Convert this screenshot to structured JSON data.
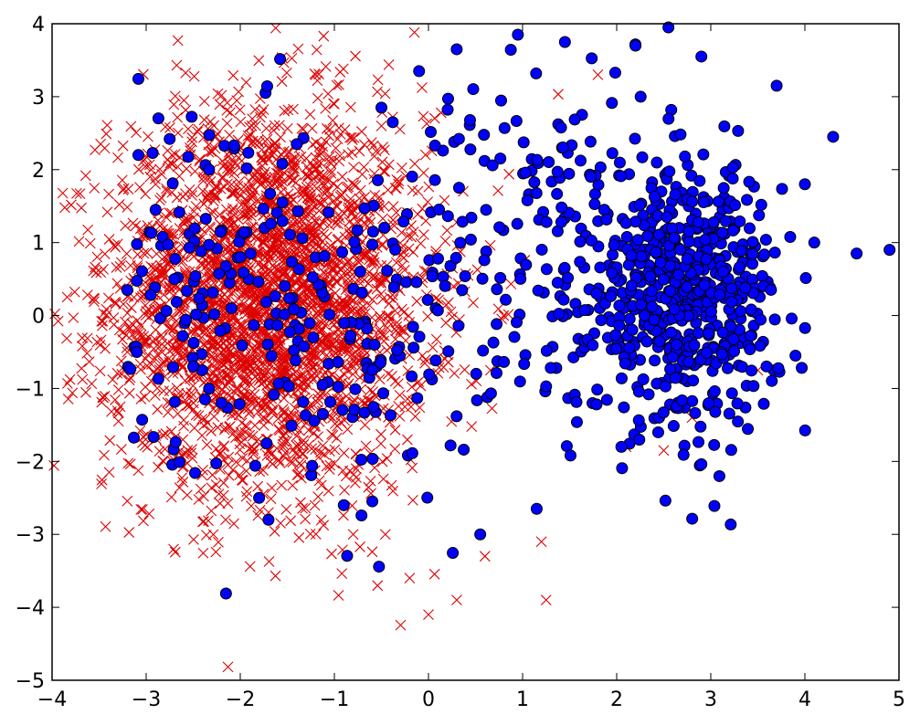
{
  "chart_data": {
    "type": "scatter",
    "title": "",
    "xlabel": "",
    "ylabel": "",
    "xlim": [
      -4,
      5
    ],
    "ylim": [
      -5,
      4
    ],
    "xticks": [
      -4,
      -3,
      -2,
      -1,
      0,
      1,
      2,
      3,
      4,
      5
    ],
    "yticks": [
      -5,
      -4,
      -3,
      -2,
      -1,
      0,
      1,
      2,
      3,
      4
    ],
    "xtick_labels": [
      "−4",
      "−3",
      "−2",
      "−1",
      "0",
      "1",
      "2",
      "3",
      "4",
      "5"
    ],
    "ytick_labels": [
      "−5",
      "−4",
      "−3",
      "−2",
      "−1",
      "0",
      "1",
      "2",
      "3",
      "4"
    ],
    "grid": false,
    "legend": "none",
    "series": [
      {
        "marker": "x",
        "color": "#dd0000",
        "count_estimate": 3000,
        "cluster": {
          "center": [
            -1.7,
            0.2
          ],
          "spread": [
            0.85,
            1.3
          ]
        },
        "sample_points": [
          [
            -3.2,
            -0.5
          ],
          [
            -2.9,
            1.8
          ],
          [
            -2.6,
            -1.9
          ],
          [
            -2.3,
            2.0
          ],
          [
            -2.0,
            2.3
          ],
          [
            -1.7,
            -2.7
          ],
          [
            -1.2,
            3.3
          ],
          [
            -1.0,
            2.9
          ],
          [
            -0.8,
            -3.0
          ],
          [
            -0.5,
            2.6
          ],
          [
            -0.2,
            -3.6
          ],
          [
            0.0,
            -4.1
          ],
          [
            0.3,
            -3.9
          ],
          [
            0.6,
            -3.3
          ],
          [
            0.8,
            0.0
          ],
          [
            1.2,
            -3.1
          ],
          [
            1.25,
            -3.9
          ],
          [
            1.8,
            3.3
          ],
          [
            2.1,
            -1.8
          ],
          [
            2.5,
            -1.85
          ],
          [
            2.8,
            -1.4
          ],
          [
            3.5,
            -0.75
          ]
        ]
      },
      {
        "marker": "o",
        "color": "#0000ff",
        "count_estimate": 1000,
        "cluster": {
          "center": [
            2.7,
            0.3
          ],
          "spread": [
            0.5,
            0.9
          ]
        },
        "sample_points": [
          [
            -3.2,
            0.35
          ],
          [
            -3.1,
            -0.5
          ],
          [
            -2.9,
            1.45
          ],
          [
            -2.7,
            0.5
          ],
          [
            -2.5,
            -0.7
          ],
          [
            -2.2,
            -1.2
          ],
          [
            -2.0,
            0.8
          ],
          [
            -1.8,
            -2.5
          ],
          [
            -1.7,
            -2.8
          ],
          [
            -1.4,
            2.35
          ],
          [
            -0.9,
            -2.6
          ],
          [
            -0.5,
            2.85
          ],
          [
            -0.1,
            3.35
          ],
          [
            0.3,
            3.65
          ],
          [
            0.55,
            -3.0
          ],
          [
            0.95,
            3.85
          ],
          [
            1.15,
            -2.65
          ],
          [
            1.45,
            3.75
          ],
          [
            2.05,
            -1.8
          ],
          [
            2.2,
            3.7
          ],
          [
            2.55,
            3.95
          ],
          [
            2.9,
            3.55
          ],
          [
            3.7,
            3.15
          ],
          [
            3.9,
            -0.55
          ],
          [
            4.0,
            1.8
          ],
          [
            4.1,
            1.0
          ],
          [
            4.3,
            2.45
          ],
          [
            4.55,
            0.85
          ],
          [
            4.9,
            0.9
          ]
        ]
      }
    ]
  }
}
